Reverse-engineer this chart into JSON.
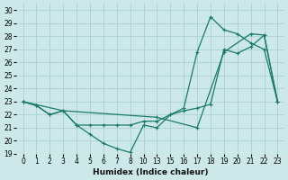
{
  "xlabel": "Humidex (Indice chaleur)",
  "bg_color": "#cce8e8",
  "grid_color": "#aed4d4",
  "line_color": "#1a7a6a",
  "xlabels": [
    "0",
    "1",
    "2",
    "3",
    "4",
    "5",
    "6",
    "7",
    "8",
    "10",
    "13",
    "15",
    "16",
    "17",
    "18",
    "19",
    "20",
    "21",
    "22",
    "23"
  ],
  "ylim": [
    19,
    30.5
  ],
  "yticks": [
    19,
    20,
    21,
    22,
    23,
    24,
    25,
    26,
    27,
    28,
    29,
    30
  ],
  "lines": [
    {
      "xi": [
        0,
        1,
        2,
        3,
        4,
        5,
        6,
        7,
        8,
        9,
        10,
        11,
        12,
        13,
        14,
        15,
        16,
        17,
        18,
        19
      ],
      "y": [
        23,
        22.7,
        22,
        22.3,
        21.2,
        20.5,
        19.8,
        19.4,
        19.1,
        21.2,
        21.0,
        22.0,
        22.3,
        22.5,
        22.8,
        27.0,
        26.7,
        27.2,
        28.1,
        23.0
      ]
    },
    {
      "xi": [
        0,
        1,
        2,
        3,
        4,
        5,
        6,
        7,
        8,
        9,
        10,
        11,
        12,
        13,
        14,
        15,
        16,
        17,
        18,
        19
      ],
      "y": [
        23,
        22.7,
        22,
        22.3,
        21.2,
        21.2,
        21.2,
        21.2,
        21.2,
        21.5,
        21.5,
        22.0,
        22.5,
        26.8,
        29.5,
        28.5,
        28.2,
        27.5,
        27.0,
        23.0
      ]
    },
    {
      "xi": [
        0,
        3,
        10,
        13,
        15,
        17,
        18,
        19
      ],
      "y": [
        23,
        22.3,
        21.8,
        21.0,
        26.8,
        28.2,
        28.1,
        23.0
      ]
    }
  ],
  "marker": "+"
}
